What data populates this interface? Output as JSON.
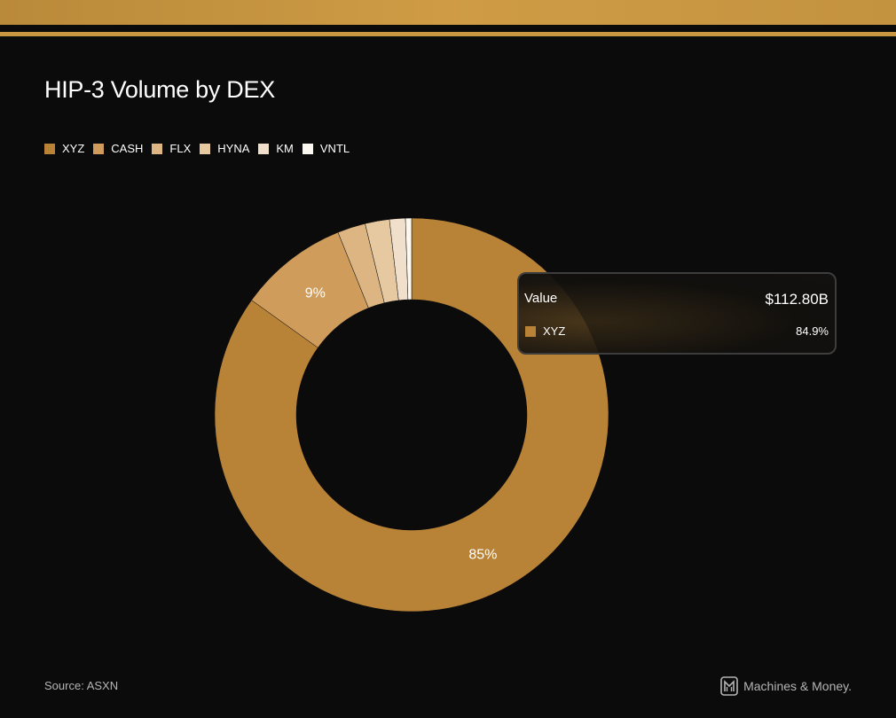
{
  "colors": {
    "background": "#0b0b0b",
    "accent": "#c89640"
  },
  "chart_data": {
    "type": "pie",
    "title": "HIP-3 Volume by DEX",
    "donut": true,
    "legend_position": "top-left",
    "series": [
      {
        "name": "XYZ",
        "value": 84.9,
        "color": "#b98337"
      },
      {
        "name": "CASH",
        "value": 9.0,
        "color": "#cf9c5c"
      },
      {
        "name": "FLX",
        "value": 2.3,
        "color": "#ddb583"
      },
      {
        "name": "HYNA",
        "value": 2.0,
        "color": "#e6c8a1"
      },
      {
        "name": "KM",
        "value": 1.3,
        "color": "#f0dfca"
      },
      {
        "name": "VNTL",
        "value": 0.5,
        "color": "#fbf7f1"
      }
    ],
    "slice_labels": [
      {
        "series": "XYZ",
        "text": "85%"
      },
      {
        "series": "CASH",
        "text": "9%"
      }
    ]
  },
  "tooltip": {
    "label": "Value",
    "value": "$112.80B",
    "series_name": "XYZ",
    "series_color": "#b98337",
    "percent": "84.9%"
  },
  "footer": {
    "source": "Source: ASXN",
    "brand": "Machines & Money."
  }
}
